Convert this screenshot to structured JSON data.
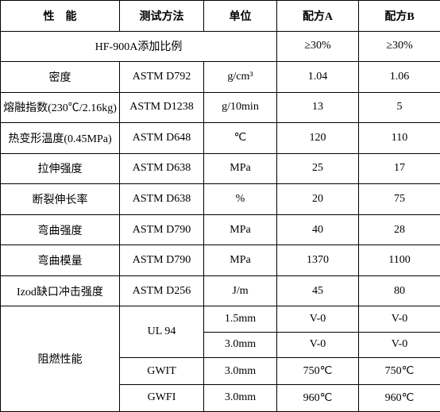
{
  "header": {
    "property": "性　能",
    "method": "测试方法",
    "unit": "单位",
    "a": "配方A",
    "b": "配方B"
  },
  "ratio": {
    "label": "HF-900A添加比例",
    "a": "≥30%",
    "b": "≥30%"
  },
  "rows": [
    {
      "prop": "密度",
      "method": "ASTM D792",
      "unit": "g/cm³",
      "a": "1.04",
      "b": "1.06"
    },
    {
      "prop": "熔融指数(230℃/2.16kg)",
      "method": "ASTM D1238",
      "unit": "g/10min",
      "a": "13",
      "b": "5"
    },
    {
      "prop": "热变形温度(0.45MPa)",
      "method": "ASTM D648",
      "unit": "℃",
      "a": "120",
      "b": "110"
    },
    {
      "prop": "拉伸强度",
      "method": "ASTM D638",
      "unit": "MPa",
      "a": "25",
      "b": "17"
    },
    {
      "prop": "断裂伸长率",
      "method": "ASTM D638",
      "unit": "%",
      "a": "20",
      "b": "75"
    },
    {
      "prop": "弯曲强度",
      "method": "ASTM D790",
      "unit": "MPa",
      "a": "40",
      "b": "28"
    },
    {
      "prop": "弯曲模量",
      "method": "ASTM D790",
      "unit": "MPa",
      "a": "1370",
      "b": "1100"
    },
    {
      "prop": "Izod缺口冲击强度",
      "method": "ASTM D256",
      "unit": "J/m",
      "a": "45",
      "b": "80"
    }
  ],
  "flame": {
    "label": "阻燃性能",
    "ul94": "UL 94",
    "gwit": "GWIT",
    "gwfi": "GWFI",
    "sub": [
      {
        "unit": "1.5mm",
        "a": "V-0",
        "b": "V-0"
      },
      {
        "unit": "3.0mm",
        "a": "V-0",
        "b": "V-0"
      },
      {
        "unit": "3.0mm",
        "a": "750℃",
        "b": "750℃"
      },
      {
        "unit": "3.0mm",
        "a": "960℃",
        "b": "960℃"
      }
    ]
  }
}
